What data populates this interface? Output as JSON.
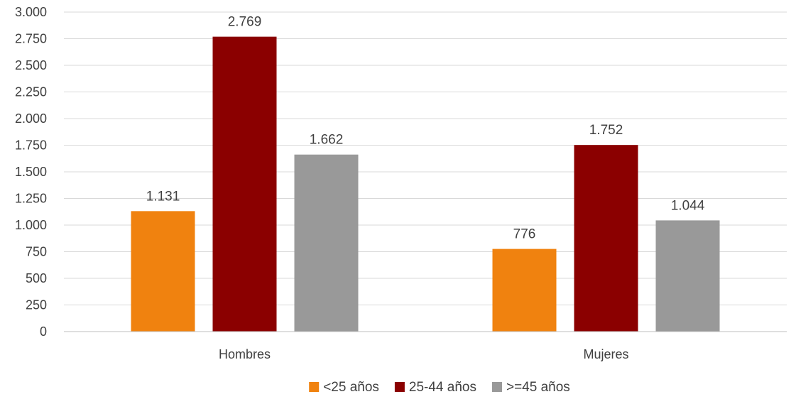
{
  "chart_data": {
    "type": "bar",
    "categories": [
      "Hombres",
      "Mujeres"
    ],
    "series": [
      {
        "name": "<25 años",
        "values": [
          1131,
          776
        ],
        "labels": [
          "1.131",
          "776"
        ],
        "color": "#F0820F"
      },
      {
        "name": "25-44 años",
        "values": [
          2769,
          1752
        ],
        "labels": [
          "2.769",
          "1.752"
        ],
        "color": "#8B0000"
      },
      {
        "name": ">=45 años",
        "values": [
          1662,
          1044
        ],
        "labels": [
          "1.662",
          "1.044"
        ],
        "color": "#999999"
      }
    ],
    "ylim": [
      0,
      3000
    ],
    "yticks": [
      0,
      250,
      500,
      750,
      1000,
      1250,
      1500,
      1750,
      2000,
      2250,
      2500,
      2750,
      3000
    ],
    "ytick_labels": [
      "0",
      "250",
      "500",
      "750",
      "1.000",
      "1.250",
      "1.500",
      "1.750",
      "2.000",
      "2.250",
      "2.500",
      "2.750",
      "3.000"
    ],
    "grid": true,
    "legend_position": "bottom-center",
    "title": "",
    "xlabel": "",
    "ylabel": ""
  }
}
